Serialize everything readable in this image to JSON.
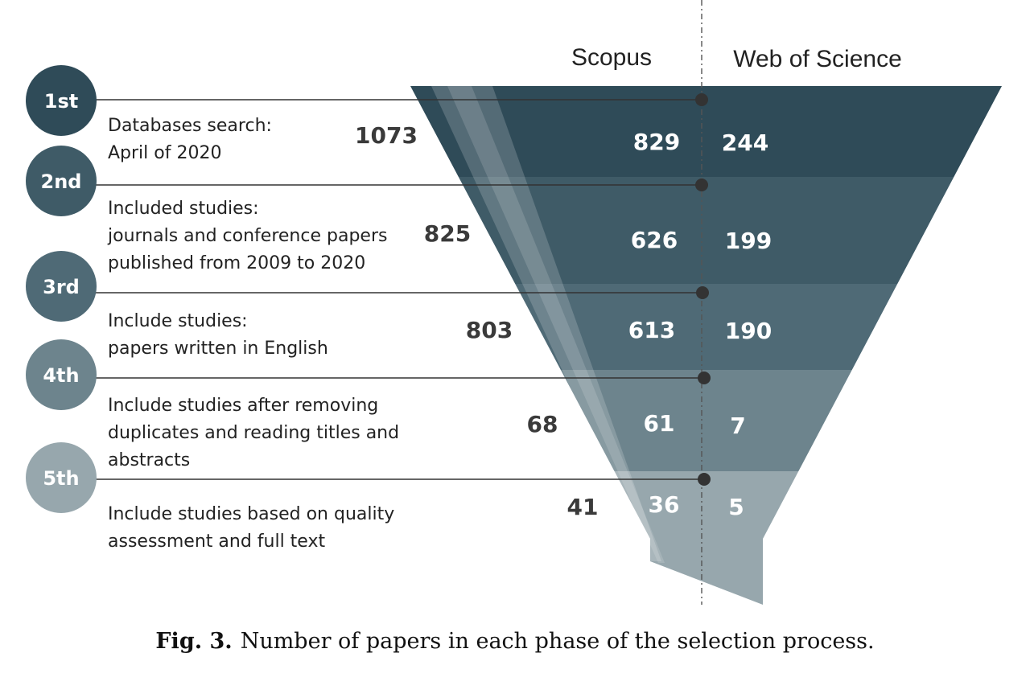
{
  "columns": {
    "left": "Scopus",
    "right": "Web of Science"
  },
  "phases": [
    {
      "badge": "1st",
      "lines": [
        "Databases search:",
        "April of 2020"
      ],
      "total": "1073",
      "scopus": "829",
      "wos": "244",
      "color": "#2f4b58"
    },
    {
      "badge": "2nd",
      "lines": [
        "Included studies:",
        "journals and conference papers",
        "published from 2009 to 2020"
      ],
      "total": "825",
      "scopus": "626",
      "wos": "199",
      "color": "#3f5b67"
    },
    {
      "badge": "3rd",
      "lines": [
        "Include studies:",
        "papers written in English"
      ],
      "total": "803",
      "scopus": "613",
      "wos": "190",
      "color": "#4f6a76"
    },
    {
      "badge": "4th",
      "lines": [
        "Include studies after removing",
        "duplicates and reading titles and",
        "abstracts"
      ],
      "total": "68",
      "scopus": "61",
      "wos": "7",
      "color": "#6d848d"
    },
    {
      "badge": "5th",
      "lines": [
        "Include studies based on quality",
        "assessment and full text"
      ],
      "total": "41",
      "scopus": "36",
      "wos": "5",
      "color": "#97a7ad"
    }
  ],
  "caption": {
    "label": "Fig. 3.",
    "text": "Number of papers in each phase of the selection process."
  }
}
